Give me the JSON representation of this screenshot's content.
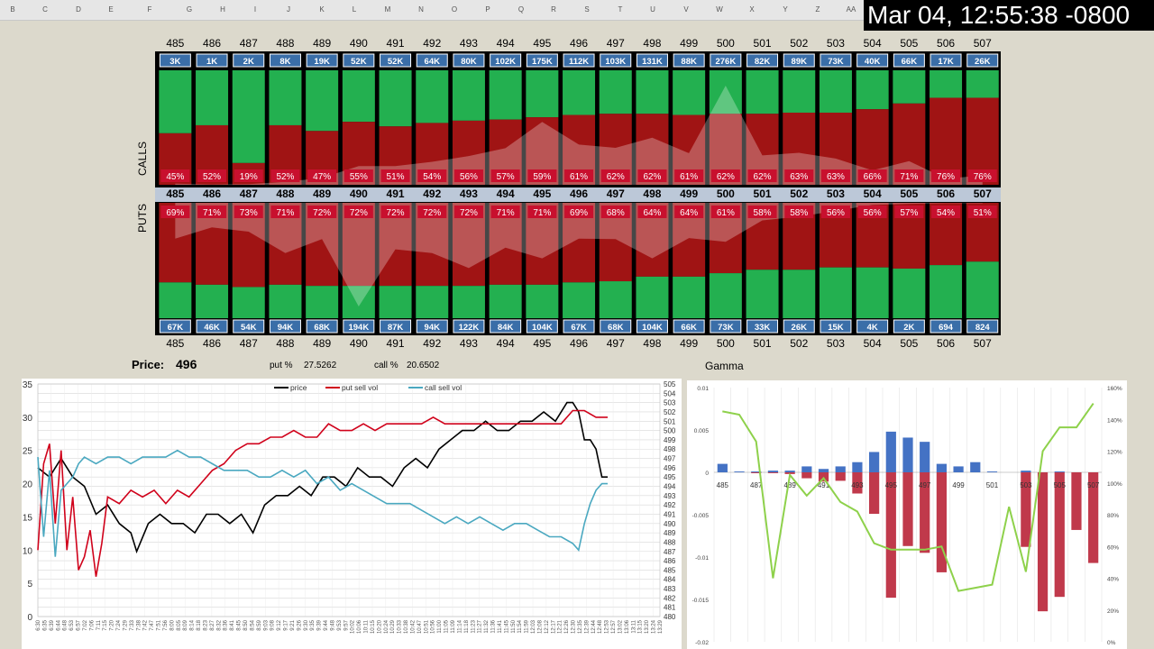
{
  "timestamp": "Mar 04, 12:55:38 -0800",
  "column_letters": [
    "B",
    "C",
    "D",
    "E",
    "F",
    "G",
    "H",
    "I",
    "J",
    "K",
    "L",
    "M",
    "N",
    "O",
    "P",
    "Q",
    "R",
    "S",
    "T",
    "U",
    "V",
    "W",
    "X",
    "Y",
    "Z",
    "AA"
  ],
  "price_label": "Price:",
  "price_value": "496",
  "put_pct_label": "put %",
  "put_pct_value": "27.5262",
  "call_pct_label": "call %",
  "call_pct_value": "20.6502",
  "gamma_label": "Gamma",
  "calls_label": "CALLS",
  "puts_label": "PUTS",
  "colors": {
    "green": "#23b050",
    "red": "#a01414",
    "vol_badge": "#3a6ea8",
    "pct_badge": "#c8102e",
    "price": "#000000",
    "put_line": "#d0021b",
    "call_line": "#4aa8c0",
    "gamma_pos": "#4472c4",
    "gamma_neg": "#c0394b",
    "gamma_line": "#8ed14b"
  },
  "chart_data": [
    {
      "type": "heatmap",
      "name": "calls",
      "strikes": [
        485,
        486,
        487,
        488,
        489,
        490,
        491,
        492,
        493,
        494,
        495,
        496,
        497,
        498,
        499,
        500,
        501,
        502,
        503,
        504,
        505,
        506,
        507
      ],
      "volume_labels": [
        "3K",
        "1K",
        "2K",
        "8K",
        "19K",
        "52K",
        "52K",
        "64K",
        "80K",
        "102K",
        "175K",
        "112K",
        "103K",
        "131K",
        "88K",
        "276K",
        "82K",
        "89K",
        "73K",
        "40K",
        "66K",
        "17K",
        "26K"
      ],
      "sell_pct_labels": [
        "45%",
        "52%",
        "19%",
        "52%",
        "47%",
        "55%",
        "51%",
        "54%",
        "56%",
        "57%",
        "59%",
        "61%",
        "62%",
        "62%",
        "61%",
        "62%",
        "62%",
        "63%",
        "63%",
        "66%",
        "71%",
        "76%",
        "76%"
      ],
      "sell_pct": [
        45,
        52,
        19,
        52,
        47,
        55,
        51,
        54,
        56,
        57,
        59,
        61,
        62,
        62,
        61,
        62,
        62,
        63,
        63,
        66,
        71,
        76,
        76
      ]
    },
    {
      "type": "heatmap",
      "name": "puts",
      "strikes": [
        485,
        486,
        487,
        488,
        489,
        490,
        491,
        492,
        493,
        494,
        495,
        496,
        497,
        498,
        499,
        500,
        501,
        502,
        503,
        504,
        505,
        506,
        507
      ],
      "volume_labels": [
        "67K",
        "46K",
        "54K",
        "94K",
        "68K",
        "194K",
        "87K",
        "94K",
        "122K",
        "84K",
        "104K",
        "67K",
        "68K",
        "104K",
        "66K",
        "73K",
        "33K",
        "26K",
        "15K",
        "4K",
        "2K",
        "694",
        "824"
      ],
      "sell_pct_labels": [
        "69%",
        "71%",
        "73%",
        "71%",
        "72%",
        "72%",
        "72%",
        "72%",
        "72%",
        "71%",
        "71%",
        "69%",
        "68%",
        "64%",
        "64%",
        "61%",
        "58%",
        "58%",
        "56%",
        "56%",
        "57%",
        "54%",
        "51%"
      ],
      "sell_pct": [
        69,
        71,
        73,
        71,
        72,
        72,
        72,
        72,
        72,
        71,
        71,
        69,
        68,
        64,
        64,
        61,
        58,
        58,
        56,
        56,
        57,
        54,
        51
      ]
    },
    {
      "type": "line",
      "name": "volume-price",
      "legend": [
        "price",
        "put sell vol",
        "call sell vol"
      ],
      "legend_position": "top",
      "y_left_ticks": [
        "35",
        "30",
        "25",
        "20",
        "15",
        "10",
        "5",
        "0"
      ],
      "y_left_range": [
        0,
        35
      ],
      "y_right_ticks": [
        "505",
        "504",
        "503",
        "502",
        "501",
        "500",
        "499",
        "498",
        "497",
        "496",
        "495",
        "494",
        "493",
        "492",
        "491",
        "490",
        "489",
        "488",
        "487",
        "486",
        "485",
        "484",
        "483",
        "482",
        "481",
        "480"
      ],
      "y_right_range": [
        480,
        505
      ],
      "x_tick_labels": [
        "6:30",
        "6:35",
        "6:39",
        "6:44",
        "6:48",
        "6:53",
        "6:57",
        "7:02",
        "7:06",
        "7:11",
        "7:15",
        "7:20",
        "7:24",
        "7:29",
        "7:33",
        "7:38",
        "7:42",
        "7:47",
        "7:51",
        "7:56",
        "8:00",
        "8:05",
        "8:09",
        "8:14",
        "8:18",
        "8:23",
        "8:27",
        "8:32",
        "8:36",
        "8:41",
        "8:45",
        "8:50",
        "8:54",
        "8:59",
        "9:03",
        "9:08",
        "9:12",
        "9:17",
        "9:21",
        "9:26",
        "9:30",
        "9:35",
        "9:39",
        "9:44",
        "9:48",
        "9:53",
        "9:57",
        "10:02",
        "10:06",
        "10:11",
        "10:15",
        "10:20",
        "10:24",
        "10:29",
        "10:33",
        "10:38",
        "10:42",
        "10:47",
        "10:51",
        "10:56",
        "11:00",
        "11:05",
        "11:09",
        "11:14",
        "11:18",
        "11:23",
        "11:27",
        "11:32",
        "11:36",
        "11:41",
        "11:45",
        "11:50",
        "11:54",
        "11:59",
        "12:03",
        "12:08",
        "12:12",
        "12:17",
        "12:21",
        "12:26",
        "12:30",
        "12:35",
        "12:39",
        "12:44",
        "12:48",
        "12:53",
        "12:57",
        "13:02",
        "13:06",
        "13:11",
        "13:15",
        "13:20",
        "13:24",
        "13:29"
      ],
      "series": [
        {
          "name": "price",
          "axis": "right",
          "values": [
            [
              0,
              496
            ],
            [
              2,
              495
            ],
            [
              4,
              497
            ],
            [
              6,
              495
            ],
            [
              8,
              494
            ],
            [
              10,
              491
            ],
            [
              12,
              492
            ],
            [
              14,
              490
            ],
            [
              16,
              489
            ],
            [
              17,
              487
            ],
            [
              19,
              490
            ],
            [
              21,
              491
            ],
            [
              23,
              490
            ],
            [
              25,
              490
            ],
            [
              27,
              489
            ],
            [
              29,
              491
            ],
            [
              31,
              491
            ],
            [
              33,
              490
            ],
            [
              35,
              491
            ],
            [
              37,
              489
            ],
            [
              39,
              492
            ],
            [
              41,
              493
            ],
            [
              43,
              493
            ],
            [
              45,
              494
            ],
            [
              47,
              493
            ],
            [
              49,
              495
            ],
            [
              51,
              495
            ],
            [
              53,
              494
            ],
            [
              55,
              496
            ],
            [
              57,
              495
            ],
            [
              59,
              495
            ],
            [
              61,
              494
            ],
            [
              63,
              496
            ],
            [
              65,
              497
            ],
            [
              67,
              496
            ],
            [
              69,
              498
            ],
            [
              71,
              499
            ],
            [
              73,
              500
            ],
            [
              75,
              500
            ],
            [
              77,
              501
            ],
            [
              79,
              500
            ],
            [
              81,
              500
            ],
            [
              83,
              501
            ],
            [
              85,
              501
            ],
            [
              87,
              502
            ],
            [
              89,
              501
            ],
            [
              91,
              503
            ],
            [
              92,
              503
            ],
            [
              93,
              502
            ],
            [
              94,
              499
            ],
            [
              95,
              499
            ],
            [
              96,
              498
            ],
            [
              97,
              495
            ],
            [
              98,
              495
            ]
          ]
        },
        {
          "name": "put sell vol",
          "axis": "left",
          "values": [
            [
              0,
              10
            ],
            [
              1,
              23
            ],
            [
              2,
              26
            ],
            [
              3,
              14
            ],
            [
              4,
              25
            ],
            [
              5,
              10
            ],
            [
              6,
              18
            ],
            [
              7,
              7
            ],
            [
              8,
              9
            ],
            [
              9,
              13
            ],
            [
              10,
              6
            ],
            [
              11,
              11
            ],
            [
              12,
              18
            ],
            [
              14,
              17
            ],
            [
              16,
              19
            ],
            [
              18,
              18
            ],
            [
              20,
              19
            ],
            [
              22,
              17
            ],
            [
              24,
              19
            ],
            [
              26,
              18
            ],
            [
              28,
              20
            ],
            [
              30,
              22
            ],
            [
              32,
              23
            ],
            [
              34,
              25
            ],
            [
              36,
              26
            ],
            [
              38,
              26
            ],
            [
              40,
              27
            ],
            [
              42,
              27
            ],
            [
              44,
              28
            ],
            [
              46,
              27
            ],
            [
              48,
              27
            ],
            [
              50,
              29
            ],
            [
              52,
              28
            ],
            [
              54,
              28
            ],
            [
              56,
              29
            ],
            [
              58,
              28
            ],
            [
              60,
              29
            ],
            [
              62,
              29
            ],
            [
              64,
              29
            ],
            [
              66,
              29
            ],
            [
              68,
              30
            ],
            [
              70,
              29
            ],
            [
              72,
              29
            ],
            [
              74,
              29
            ],
            [
              76,
              29
            ],
            [
              78,
              29
            ],
            [
              80,
              29
            ],
            [
              82,
              29
            ],
            [
              84,
              29
            ],
            [
              86,
              29
            ],
            [
              88,
              29
            ],
            [
              90,
              29
            ],
            [
              92,
              31
            ],
            [
              94,
              31
            ],
            [
              96,
              30
            ],
            [
              98,
              30
            ]
          ]
        },
        {
          "name": "call sell vol",
          "axis": "left",
          "values": [
            [
              0,
              24
            ],
            [
              1,
              12
            ],
            [
              2,
              22
            ],
            [
              3,
              9
            ],
            [
              4,
              19
            ],
            [
              5,
              20
            ],
            [
              6,
              21
            ],
            [
              7,
              23
            ],
            [
              8,
              24
            ],
            [
              10,
              23
            ],
            [
              12,
              24
            ],
            [
              14,
              24
            ],
            [
              16,
              23
            ],
            [
              18,
              24
            ],
            [
              20,
              24
            ],
            [
              22,
              24
            ],
            [
              24,
              25
            ],
            [
              26,
              24
            ],
            [
              28,
              24
            ],
            [
              30,
              23
            ],
            [
              32,
              22
            ],
            [
              34,
              22
            ],
            [
              36,
              22
            ],
            [
              38,
              21
            ],
            [
              40,
              21
            ],
            [
              42,
              22
            ],
            [
              44,
              21
            ],
            [
              46,
              22
            ],
            [
              48,
              20
            ],
            [
              50,
              21
            ],
            [
              52,
              19
            ],
            [
              54,
              20
            ],
            [
              56,
              19
            ],
            [
              58,
              18
            ],
            [
              60,
              17
            ],
            [
              62,
              17
            ],
            [
              64,
              17
            ],
            [
              66,
              16
            ],
            [
              68,
              15
            ],
            [
              70,
              14
            ],
            [
              72,
              15
            ],
            [
              74,
              14
            ],
            [
              76,
              15
            ],
            [
              78,
              14
            ],
            [
              80,
              13
            ],
            [
              82,
              14
            ],
            [
              84,
              14
            ],
            [
              86,
              13
            ],
            [
              88,
              12
            ],
            [
              90,
              12
            ],
            [
              92,
              11
            ],
            [
              93,
              10
            ],
            [
              94,
              14
            ],
            [
              95,
              17
            ],
            [
              96,
              19
            ],
            [
              97,
              20
            ],
            [
              98,
              20
            ]
          ]
        }
      ]
    },
    {
      "type": "bar",
      "name": "gamma",
      "categories": [
        485,
        486,
        487,
        488,
        489,
        490,
        491,
        492,
        493,
        494,
        495,
        496,
        497,
        498,
        499,
        500,
        501,
        502,
        503,
        504,
        505,
        506,
        507
      ],
      "x_tick_labels": [
        "485",
        "487",
        "489",
        "491",
        "493",
        "495",
        "497",
        "499",
        "501",
        "503",
        "505",
        "507"
      ],
      "y_left_ticks": [
        "0.01",
        "0.005",
        "0",
        "-0.005",
        "-0.01",
        "-0.015",
        "-0.02"
      ],
      "y_left_range": [
        -0.02,
        0.01
      ],
      "y_right_ticks": [
        "160%",
        "140%",
        "120%",
        "100%",
        "80%",
        "60%",
        "40%",
        "20%",
        "0%"
      ],
      "y_right_range": [
        0,
        160
      ],
      "series": [
        {
          "name": "call gamma",
          "values": [
            0.001,
            0.0001,
            0.0001,
            0.0002,
            0.0002,
            0.0007,
            0.0004,
            0.0007,
            0.0012,
            0.0024,
            0.0048,
            0.0041,
            0.0036,
            0.001,
            0.0007,
            0.0012,
            0.0001,
            0,
            0.0002,
            0,
            0.0001,
            0,
            0
          ]
        },
        {
          "name": "put gamma",
          "values": [
            0,
            0,
            -0.0001,
            -0.0001,
            -0.0002,
            -0.0007,
            -0.0011,
            -0.001,
            -0.0025,
            -0.0049,
            -0.0148,
            -0.0087,
            -0.0095,
            -0.0118,
            0,
            0,
            0,
            0,
            -0.0088,
            -0.0164,
            -0.0147,
            -0.0068,
            -0.0107
          ]
        },
        {
          "name": "ratio",
          "axis": "right",
          "values": [
            145,
            143,
            126,
            40,
            105,
            92,
            103,
            88,
            82,
            62,
            58,
            58,
            58,
            60,
            32,
            34,
            36,
            85,
            44,
            120,
            135,
            135,
            150
          ]
        }
      ]
    }
  ]
}
